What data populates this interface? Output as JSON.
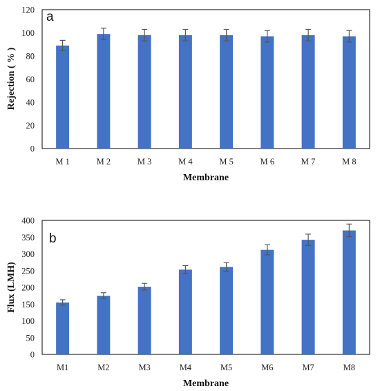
{
  "chart_data": [
    {
      "type": "bar",
      "panel_label": "a",
      "categories": [
        "M 1",
        "M 2",
        "M 3",
        "M 4",
        "M 5",
        "M 6",
        "M 7",
        "M 8"
      ],
      "values": [
        89,
        99,
        98,
        98,
        98,
        97,
        98,
        97
      ],
      "errors": [
        4.5,
        5,
        5,
        5,
        5,
        5,
        5,
        5
      ],
      "xlabel": "Membrane",
      "ylabel": "Rejection ( % )",
      "ylim": [
        0,
        120
      ],
      "yticks": [
        "0",
        "20",
        "40",
        "60",
        "80",
        "100",
        "120"
      ],
      "grid": false,
      "bar_color": "#4472C4"
    },
    {
      "type": "bar",
      "panel_label": "b",
      "categories": [
        "M1",
        "M2",
        "M3",
        "M4",
        "M5",
        "M6",
        "M7",
        "M8"
      ],
      "values": [
        155,
        175,
        202,
        253,
        261,
        312,
        342,
        370
      ],
      "errors": [
        8,
        9,
        10,
        12,
        13,
        15,
        17,
        19
      ],
      "xlabel": "Membrane",
      "ylabel": "Flux (LMH)",
      "ylim": [
        0,
        400
      ],
      "yticks": [
        "0",
        "50",
        "100",
        "150",
        "200",
        "250",
        "300",
        "350",
        "400"
      ],
      "grid": false,
      "bar_color": "#4472C4"
    }
  ]
}
